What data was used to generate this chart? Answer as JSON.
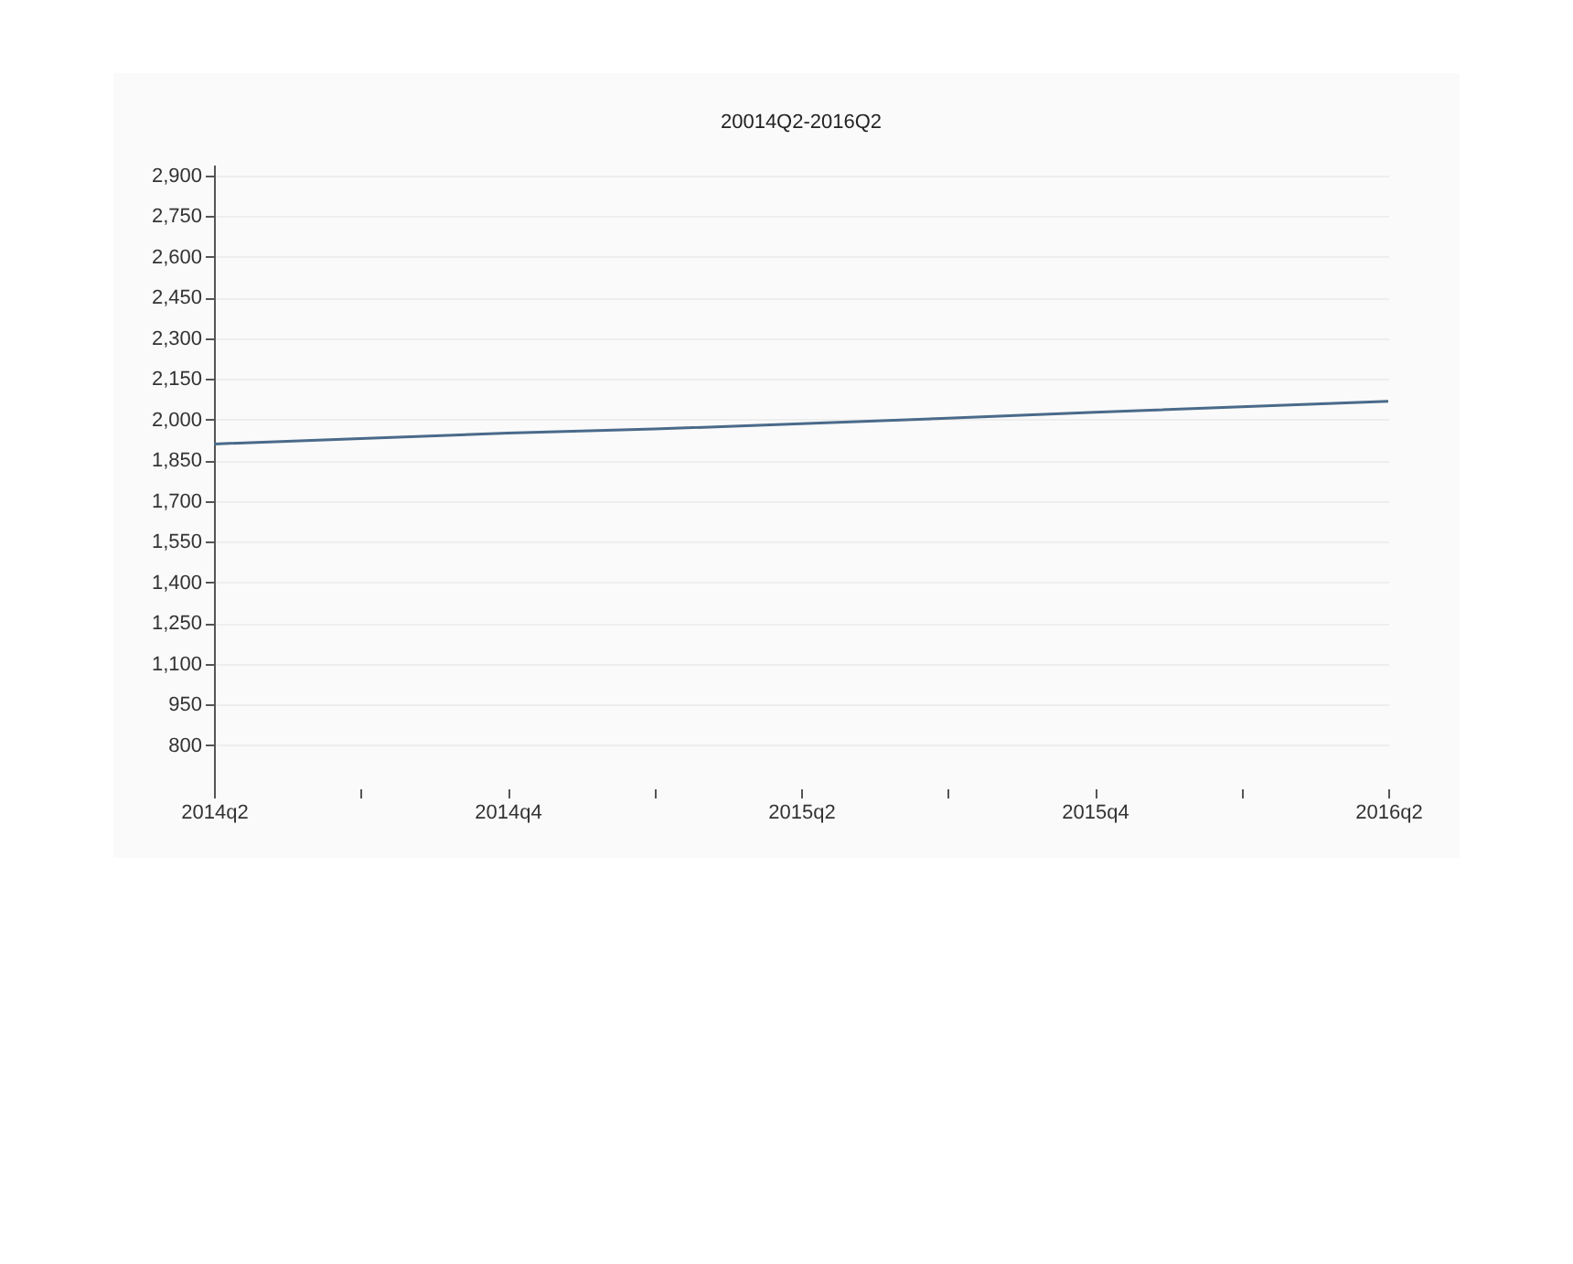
{
  "chart_data": {
    "type": "line",
    "title": "20014Q2-2016Q2",
    "categories": [
      "2014q2",
      null,
      "2014q4",
      null,
      "2015q2",
      null,
      "2015q4",
      null,
      "2016q2"
    ],
    "series": [
      {
        "color": "#4a6a8a",
        "values": [
          1910,
          1930,
          1950,
          1965,
          1985,
          2005,
          2027,
          2047,
          2067
        ]
      }
    ],
    "ylim": [
      640,
      2940
    ],
    "yticks": [
      {
        "value": 800,
        "label": "800"
      },
      {
        "value": 950,
        "label": "950"
      },
      {
        "value": 1100,
        "label": "1,100"
      },
      {
        "value": 1250,
        "label": "1,250"
      },
      {
        "value": 1400,
        "label": "1,400"
      },
      {
        "value": 1550,
        "label": "1,550"
      },
      {
        "value": 1700,
        "label": "1,700"
      },
      {
        "value": 1850,
        "label": "1,850"
      },
      {
        "value": 2000,
        "label": "2,000"
      },
      {
        "value": 2150,
        "label": "2,150"
      },
      {
        "value": 2300,
        "label": "2,300"
      },
      {
        "value": 2450,
        "label": "2,450"
      },
      {
        "value": 2600,
        "label": "2,600"
      },
      {
        "value": 2750,
        "label": "2,750"
      },
      {
        "value": 2900,
        "label": "2,900"
      }
    ],
    "grid": "y",
    "marker": "none",
    "line_style": "solid"
  }
}
